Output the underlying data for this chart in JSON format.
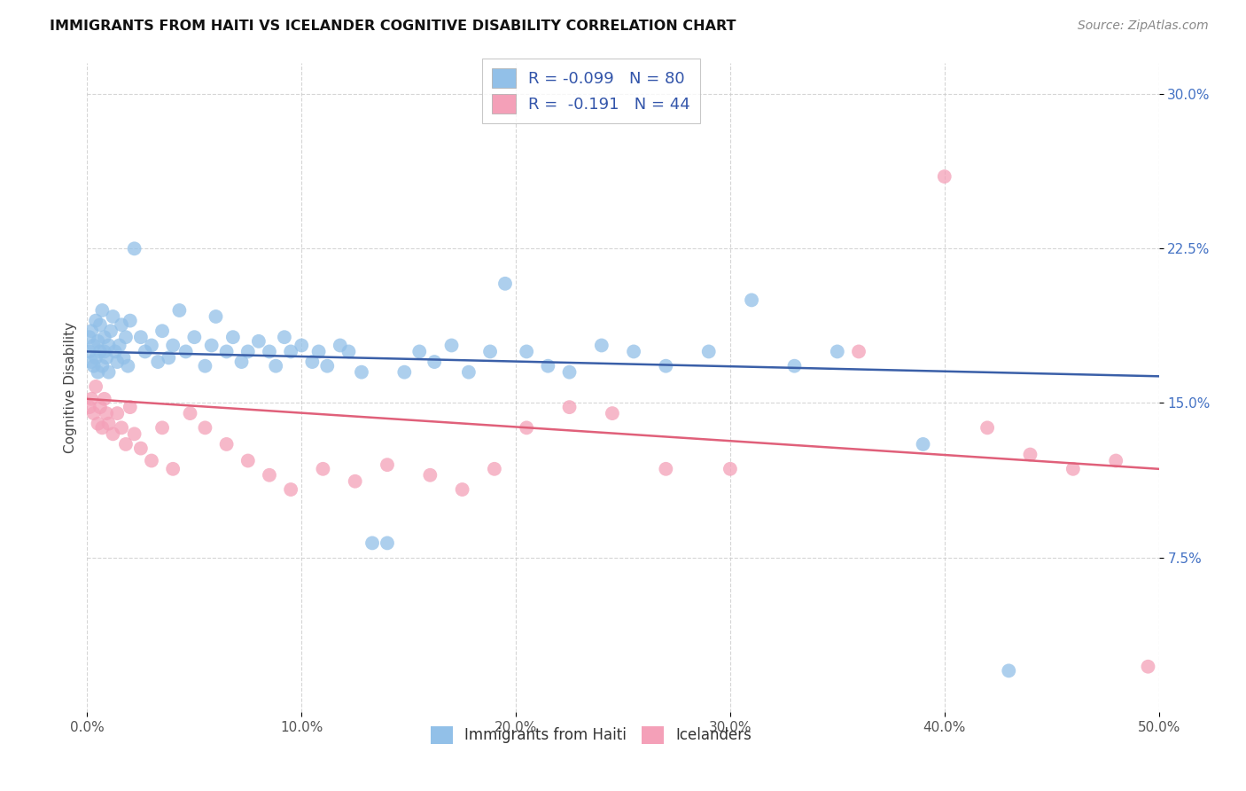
{
  "title": "IMMIGRANTS FROM HAITI VS ICELANDER COGNITIVE DISABILITY CORRELATION CHART",
  "source": "Source: ZipAtlas.com",
  "ylabel": "Cognitive Disability",
  "xlim": [
    0.0,
    0.5
  ],
  "ylim": [
    0.0,
    0.315
  ],
  "xticks": [
    0.0,
    0.1,
    0.2,
    0.3,
    0.4,
    0.5
  ],
  "yticks": [
    0.075,
    0.15,
    0.225,
    0.3
  ],
  "ytick_labels": [
    "7.5%",
    "15.0%",
    "22.5%",
    "30.0%"
  ],
  "xtick_labels": [
    "0.0%",
    "10.0%",
    "20.0%",
    "30.0%",
    "40.0%",
    "50.0%"
  ],
  "legend_labels": [
    "Immigrants from Haiti",
    "Icelanders"
  ],
  "R_haiti": -0.099,
  "N_haiti": 80,
  "R_iceland": -0.191,
  "N_iceland": 44,
  "blue_color": "#92C0E8",
  "pink_color": "#F4A0B8",
  "blue_line_color": "#3A5FA8",
  "pink_line_color": "#E0607A",
  "haiti_line_x0": 0.0,
  "haiti_line_x1": 0.5,
  "haiti_line_y0": 0.175,
  "haiti_line_y1": 0.163,
  "iceland_line_x0": 0.0,
  "iceland_line_x1": 0.5,
  "iceland_line_y0": 0.152,
  "iceland_line_y1": 0.118,
  "haiti_x": [
    0.001,
    0.001,
    0.002,
    0.002,
    0.003,
    0.003,
    0.004,
    0.004,
    0.005,
    0.005,
    0.006,
    0.006,
    0.007,
    0.007,
    0.008,
    0.008,
    0.009,
    0.01,
    0.01,
    0.011,
    0.012,
    0.013,
    0.014,
    0.015,
    0.016,
    0.017,
    0.018,
    0.019,
    0.02,
    0.022,
    0.025,
    0.027,
    0.03,
    0.033,
    0.035,
    0.038,
    0.04,
    0.043,
    0.046,
    0.05,
    0.055,
    0.058,
    0.06,
    0.065,
    0.068,
    0.072,
    0.075,
    0.08,
    0.085,
    0.088,
    0.092,
    0.095,
    0.1,
    0.105,
    0.108,
    0.112,
    0.118,
    0.122,
    0.128,
    0.133,
    0.14,
    0.148,
    0.155,
    0.162,
    0.17,
    0.178,
    0.188,
    0.195,
    0.205,
    0.215,
    0.225,
    0.24,
    0.255,
    0.27,
    0.29,
    0.31,
    0.33,
    0.35,
    0.39,
    0.43
  ],
  "haiti_y": [
    0.175,
    0.182,
    0.17,
    0.185,
    0.168,
    0.178,
    0.19,
    0.172,
    0.18,
    0.165,
    0.188,
    0.175,
    0.195,
    0.168,
    0.182,
    0.175,
    0.172,
    0.178,
    0.165,
    0.185,
    0.192,
    0.175,
    0.17,
    0.178,
    0.188,
    0.172,
    0.182,
    0.168,
    0.19,
    0.225,
    0.182,
    0.175,
    0.178,
    0.17,
    0.185,
    0.172,
    0.178,
    0.195,
    0.175,
    0.182,
    0.168,
    0.178,
    0.192,
    0.175,
    0.182,
    0.17,
    0.175,
    0.18,
    0.175,
    0.168,
    0.182,
    0.175,
    0.178,
    0.17,
    0.175,
    0.168,
    0.178,
    0.175,
    0.165,
    0.082,
    0.082,
    0.165,
    0.175,
    0.17,
    0.178,
    0.165,
    0.175,
    0.208,
    0.175,
    0.168,
    0.165,
    0.178,
    0.175,
    0.168,
    0.175,
    0.2,
    0.168,
    0.175,
    0.13,
    0.02
  ],
  "iceland_x": [
    0.001,
    0.002,
    0.003,
    0.004,
    0.005,
    0.006,
    0.007,
    0.008,
    0.009,
    0.01,
    0.012,
    0.014,
    0.016,
    0.018,
    0.02,
    0.022,
    0.025,
    0.03,
    0.035,
    0.04,
    0.048,
    0.055,
    0.065,
    0.075,
    0.085,
    0.095,
    0.11,
    0.125,
    0.14,
    0.16,
    0.175,
    0.19,
    0.205,
    0.225,
    0.245,
    0.27,
    0.3,
    0.36,
    0.4,
    0.42,
    0.44,
    0.46,
    0.48,
    0.495
  ],
  "iceland_y": [
    0.148,
    0.152,
    0.145,
    0.158,
    0.14,
    0.148,
    0.138,
    0.152,
    0.145,
    0.14,
    0.135,
    0.145,
    0.138,
    0.13,
    0.148,
    0.135,
    0.128,
    0.122,
    0.138,
    0.118,
    0.145,
    0.138,
    0.13,
    0.122,
    0.115,
    0.108,
    0.118,
    0.112,
    0.12,
    0.115,
    0.108,
    0.118,
    0.138,
    0.148,
    0.145,
    0.118,
    0.118,
    0.175,
    0.26,
    0.138,
    0.125,
    0.118,
    0.122,
    0.022
  ]
}
